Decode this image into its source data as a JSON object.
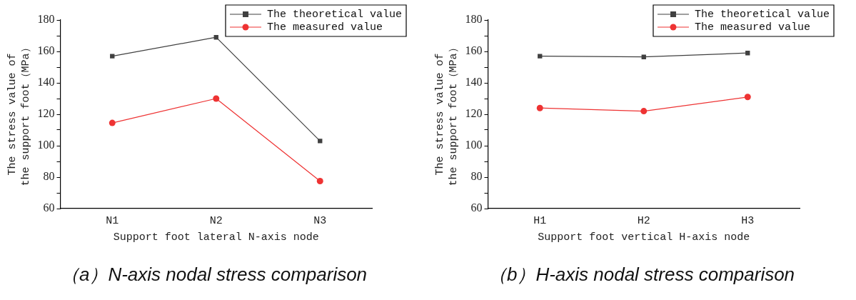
{
  "chart_data": [
    {
      "type": "line",
      "title": "（a）N-axis nodal stress comparison",
      "xlabel": "Support foot lateral N-axis node",
      "ylabel": "The stress value of\nthe support foot（MPa）",
      "categories": [
        "N1",
        "N2",
        "N3"
      ],
      "series": [
        {
          "name": "The theoretical value",
          "color": "#404040",
          "marker": "square",
          "values": [
            157,
            169,
            103
          ]
        },
        {
          "name": "The measured value",
          "color": "#ee3333",
          "marker": "circle",
          "values": [
            114.5,
            130,
            77.5
          ]
        }
      ],
      "ylim": [
        60,
        180
      ],
      "yticks": [
        60,
        {
          "value": 70,
          "label": null
        },
        80,
        {
          "value": 90,
          "label": null
        },
        100,
        {
          "value": 110,
          "label": null
        },
        120,
        {
          "value": 130,
          "label": null
        },
        140,
        {
          "value": 150,
          "label": null
        },
        160,
        {
          "value": 170,
          "label": null
        },
        180
      ],
      "grid": false,
      "legend": "top right",
      "line_style": "solid"
    },
    {
      "type": "line",
      "title": "（b）H-axis nodal stress comparison",
      "xlabel": "Support foot vertical H-axis node",
      "ylabel": "The stress value of\nthe support foot（MPa）",
      "categories": [
        "H1",
        "H2",
        "H3"
      ],
      "series": [
        {
          "name": "The theoretical value",
          "color": "#404040",
          "marker": "square",
          "values": [
            157,
            156.5,
            159
          ]
        },
        {
          "name": "The measured value",
          "color": "#ee3333",
          "marker": "circle",
          "values": [
            124,
            122,
            131
          ]
        }
      ],
      "ylim": [
        60,
        180
      ],
      "yticks": [
        60,
        {
          "value": 70,
          "label": null
        },
        80,
        {
          "value": 90,
          "label": null
        },
        100,
        {
          "value": 110,
          "label": null
        },
        120,
        {
          "value": 130,
          "label": null
        },
        140,
        {
          "value": 150,
          "label": null
        },
        160,
        {
          "value": 170,
          "label": null
        },
        180
      ],
      "grid": false,
      "legend": "top right",
      "line_style": "solid"
    }
  ]
}
